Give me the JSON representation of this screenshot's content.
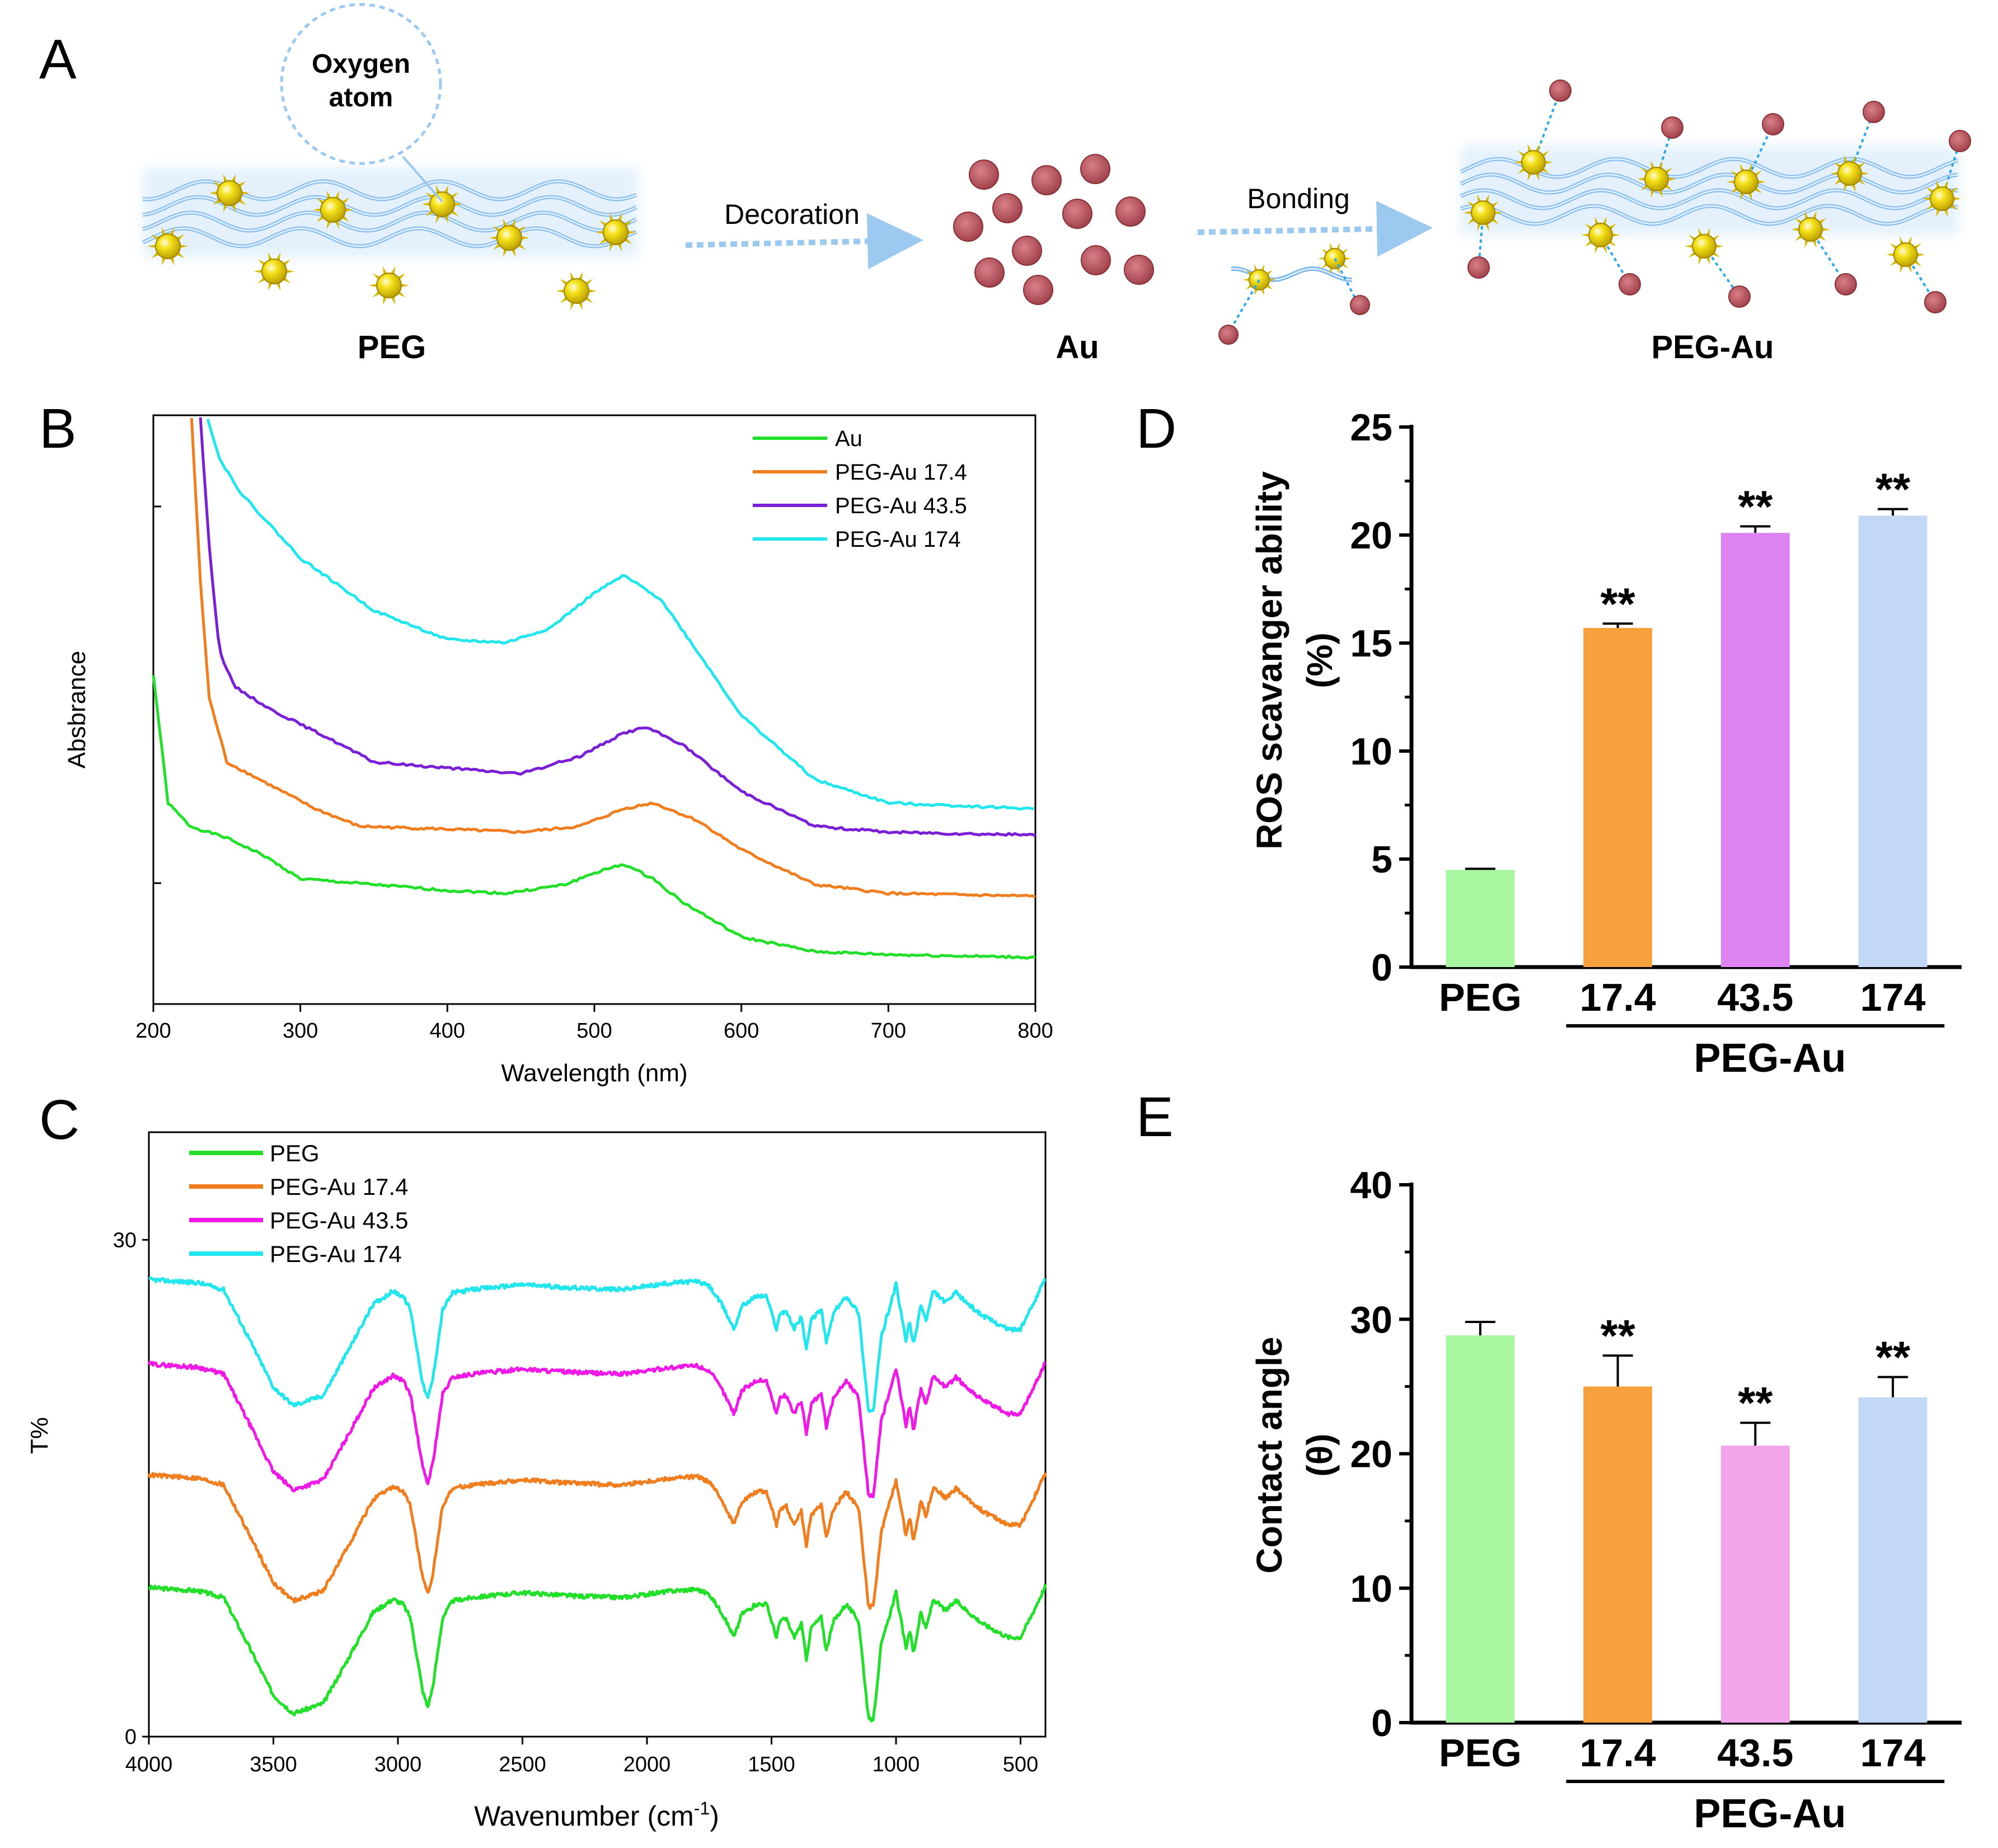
{
  "panels": {
    "A": {
      "letter": "A",
      "callout": [
        "Oxygen",
        "atom"
      ],
      "labels": {
        "peg": "PEG",
        "au": "Au",
        "peg_au": "PEG-Au"
      },
      "arrows": {
        "decoration": "Decoration",
        "bonding": "Bonding"
      }
    },
    "B": {
      "letter": "B"
    },
    "C": {
      "letter": "C"
    },
    "D": {
      "letter": "D"
    },
    "E": {
      "letter": "E"
    }
  },
  "colors": {
    "green": "#22e02a",
    "orange": "#f07d1e",
    "purple": "#7a1fd6",
    "magenta": "#f018e6",
    "cyan": "#22e6ee",
    "bar_green": "#a8f7a0",
    "bar_orange": "#f6a03e",
    "bar_purple": "#dd84f2",
    "bar_pink": "#f2a4ea",
    "bar_blue": "#c2d8f6",
    "gold": "#f2dd10",
    "au_particle": "#c25b64",
    "chain_blue": "#9cc9f0"
  },
  "chart_data": [
    {
      "id": "B",
      "type": "line",
      "xlabel": "Wavelength (nm)",
      "ylabel": "Absbrance",
      "xlim": [
        200,
        800
      ],
      "ylim": [
        0,
        1
      ],
      "xticks": [
        "200",
        "300",
        "400",
        "500",
        "600",
        "700",
        "800"
      ],
      "legend_position": "top-right",
      "series": [
        {
          "name": "Au",
          "color": "#22e02a",
          "x": [
            200,
            210,
            225,
            250,
            275,
            300,
            350,
            400,
            440,
            480,
            500,
            520,
            540,
            560,
            600,
            650,
            700,
            800
          ],
          "y": [
            0.56,
            0.34,
            0.3,
            0.28,
            0.25,
            0.21,
            0.2,
            0.19,
            0.185,
            0.2,
            0.22,
            0.235,
            0.21,
            0.17,
            0.11,
            0.085,
            0.08,
            0.075
          ]
        },
        {
          "name": "PEG-Au 17.4",
          "color": "#f07d1e",
          "x": [
            226,
            232,
            238,
            250,
            280,
            310,
            340,
            400,
            450,
            490,
            520,
            540,
            570,
            600,
            650,
            700,
            800
          ],
          "y": [
            1.0,
            0.72,
            0.52,
            0.41,
            0.37,
            0.33,
            0.3,
            0.295,
            0.29,
            0.3,
            0.33,
            0.34,
            0.31,
            0.26,
            0.2,
            0.185,
            0.18
          ]
        },
        {
          "name": "PEG-Au 43.5",
          "color": "#7a1fd6",
          "x": [
            232,
            238,
            245,
            255,
            280,
            320,
            350,
            400,
            450,
            490,
            520,
            535,
            560,
            600,
            650,
            700,
            800
          ],
          "y": [
            1.0,
            0.78,
            0.6,
            0.54,
            0.5,
            0.45,
            0.41,
            0.4,
            0.39,
            0.42,
            0.46,
            0.47,
            0.44,
            0.36,
            0.3,
            0.29,
            0.285
          ]
        },
        {
          "name": "PEG-Au 174",
          "color": "#22e6ee",
          "x": [
            237,
            245,
            260,
            300,
            350,
            400,
            440,
            470,
            500,
            520,
            545,
            570,
            600,
            650,
            700,
            800
          ],
          "y": [
            1.0,
            0.93,
            0.87,
            0.76,
            0.67,
            0.62,
            0.615,
            0.64,
            0.7,
            0.73,
            0.69,
            0.6,
            0.49,
            0.38,
            0.34,
            0.33
          ]
        }
      ]
    },
    {
      "id": "C",
      "type": "line",
      "xlabel": "Wavenumber (cm",
      "xlabel_sup": "-1",
      "xlabel_end": ")",
      "ylabel": "T%",
      "xlim": [
        4000,
        400
      ],
      "ylim": [
        0,
        36.5
      ],
      "yticks": [
        "0",
        "30"
      ],
      "xticks": [
        "4000",
        "3500",
        "3000",
        "2500",
        "2000",
        "1500",
        "1000",
        "500"
      ],
      "legend_position": "top-left",
      "series": [
        {
          "name": "PEG",
          "color": "#22e02a",
          "offset": 9.0
        },
        {
          "name": "PEG-Au 17.4",
          "color": "#f07d1e",
          "offset": 15.8
        },
        {
          "name": "PEG-Au 43.5",
          "color": "#f018e6",
          "offset": 22.5
        },
        {
          "name": "PEG-Au 174",
          "color": "#22e6ee",
          "offset": 27.6
        }
      ],
      "shape": {
        "x": [
          4000,
          3800,
          3700,
          3600,
          3500,
          3420,
          3300,
          3200,
          3100,
          3020,
          2980,
          2950,
          2900,
          2880,
          2860,
          2820,
          2780,
          2700,
          2500,
          2300,
          2100,
          1900,
          1800,
          1750,
          1700,
          1650,
          1620,
          1560,
          1520,
          1480,
          1465,
          1440,
          1410,
          1380,
          1360,
          1340,
          1300,
          1280,
          1250,
          1200,
          1150,
          1110,
          1090,
          1060,
          1000,
          960,
          945,
          930,
          900,
          880,
          850,
          800,
          760,
          700,
          650,
          550,
          500,
          450,
          400
        ],
        "dy": [
          0,
          -0.2,
          -0.6,
          -3.5,
          -6.5,
          -7.6,
          -7.0,
          -4.3,
          -1.5,
          -0.7,
          -1.0,
          -1.8,
          -6.3,
          -7.2,
          -6.0,
          -1.8,
          -0.8,
          -0.6,
          -0.3,
          -0.5,
          -0.6,
          -0.2,
          -0.1,
          -0.4,
          -1.5,
          -3.0,
          -1.6,
          -1.0,
          -1.0,
          -3.0,
          -2.0,
          -1.9,
          -3.0,
          -2.2,
          -4.3,
          -2.4,
          -1.8,
          -3.8,
          -2.0,
          -1.0,
          -2.0,
          -8.0,
          -7.9,
          -3.5,
          -0.3,
          -3.7,
          -2.5,
          -4.0,
          -1.5,
          -2.5,
          -0.7,
          -1.4,
          -0.8,
          -1.6,
          -2.2,
          -3.0,
          -3.0,
          -1.5,
          0.1
        ]
      }
    },
    {
      "id": "D",
      "type": "bar",
      "ylabel": "ROS scavanger ability",
      "ylabel_unit": "(%)",
      "ylim": [
        0,
        25
      ],
      "yticks": [
        "0",
        "5",
        "10",
        "15",
        "20",
        "25"
      ],
      "categories": [
        "PEG",
        "17.4",
        "43.5",
        "174"
      ],
      "group_label": "PEG-Au",
      "values": [
        4.5,
        15.7,
        20.1,
        20.9
      ],
      "errors": [
        0.05,
        0.2,
        0.3,
        0.3
      ],
      "significance": [
        "",
        "**",
        "**",
        "**"
      ],
      "colors": [
        "#a8f7a0",
        "#f6a03e",
        "#dd84f2",
        "#c2d8f6"
      ]
    },
    {
      "id": "E",
      "type": "bar",
      "ylabel": "Contact angle",
      "ylabel_unit": "(θ)",
      "ylim": [
        0,
        40
      ],
      "yticks": [
        "0",
        "10",
        "20",
        "30",
        "40"
      ],
      "categories": [
        "PEG",
        "17.4",
        "43.5",
        "174"
      ],
      "group_label": "PEG-Au",
      "values": [
        28.8,
        25.0,
        20.6,
        24.2
      ],
      "errors": [
        1.0,
        2.3,
        1.7,
        1.5
      ],
      "significance": [
        "",
        "**",
        "**",
        "**"
      ],
      "colors": [
        "#a8f7a0",
        "#f6a03e",
        "#f2a4ea",
        "#c2d8f6"
      ]
    }
  ]
}
